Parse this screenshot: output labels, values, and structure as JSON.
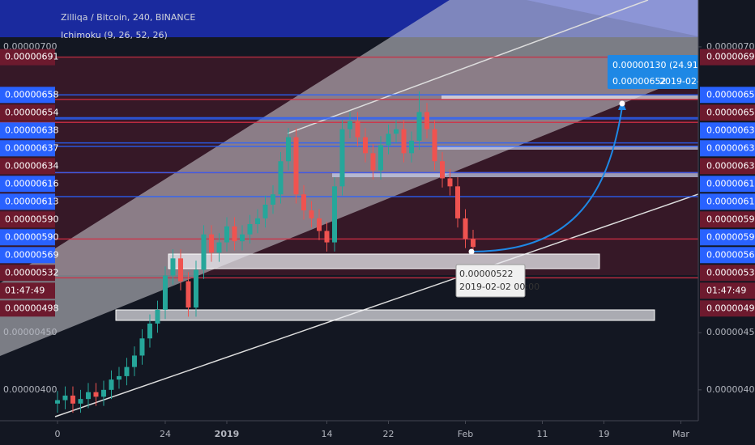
{
  "chart_data": {
    "type": "candlestick",
    "title": "Zilliqa / Bitcoin, 240, BINANCE",
    "subtitle": "Ichimoku (9, 26, 52, 26)",
    "up_color": "#26a69a",
    "down_color": "#ef5350",
    "x": [
      0,
      1,
      2,
      3,
      4,
      5,
      6,
      7,
      8,
      9,
      10,
      11,
      12,
      13,
      14,
      15,
      16,
      17,
      18,
      19,
      20,
      21,
      22,
      23,
      24,
      25,
      26,
      27,
      28,
      29,
      30,
      31,
      32,
      33,
      34,
      35,
      36,
      37,
      38,
      39,
      40,
      41,
      42,
      43,
      44,
      45,
      46,
      47,
      48,
      49,
      50,
      51,
      52,
      53,
      54
    ],
    "open": [
      3.88e-06,
      3.91e-06,
      3.95e-06,
      3.88e-06,
      3.92e-06,
      3.98e-06,
      3.94e-06,
      4e-06,
      4.09e-06,
      4.12e-06,
      4.2e-06,
      4.3e-06,
      4.45e-06,
      4.58e-06,
      4.7e-06,
      5e-06,
      5.15e-06,
      4.95e-06,
      4.72e-06,
      5.05e-06,
      5.36e-06,
      5.2e-06,
      5.29e-06,
      5.43e-06,
      5.3e-06,
      5.36e-06,
      5.45e-06,
      5.5e-06,
      5.62e-06,
      5.71e-06,
      6e-06,
      6.21e-06,
      5.71e-06,
      5.57e-06,
      5.5e-06,
      5.39e-06,
      5.29e-06,
      5.78e-06,
      6.28e-06,
      6.35e-06,
      6.21e-06,
      6.07e-06,
      5.92e-06,
      6.14e-06,
      6.24e-06,
      6.28e-06,
      6.07e-06,
      6.18e-06,
      6.43e-06,
      6.28e-06,
      6e-06,
      5.85e-06,
      5.78e-06,
      5.5e-06,
      5.32e-06
    ],
    "high": [
      3.99e-06,
      4.03e-06,
      4.03e-06,
      4e-06,
      4.06e-06,
      4.06e-06,
      4.08e-06,
      4.17e-06,
      4.2e-06,
      4.28e-06,
      4.38e-06,
      4.53e-06,
      4.66e-06,
      4.78e-06,
      5.08e-06,
      5.23e-06,
      5.23e-06,
      5.03e-06,
      5.13e-06,
      5.44e-06,
      5.44e-06,
      5.37e-06,
      5.51e-06,
      5.51e-06,
      5.44e-06,
      5.53e-06,
      5.58e-06,
      5.7e-06,
      5.79e-06,
      6.08e-06,
      6.29e-06,
      6.29e-06,
      5.79e-06,
      5.65e-06,
      5.58e-06,
      5.47e-06,
      5.86e-06,
      6.36e-06,
      6.43e-06,
      6.43e-06,
      6.29e-06,
      6.15e-06,
      6.22e-06,
      6.32e-06,
      6.36e-06,
      6.36e-06,
      6.26e-06,
      6.61e-06,
      6.51e-06,
      6.36e-06,
      6.08e-06,
      5.93e-06,
      5.86e-06,
      5.58e-06,
      5.4e-06
    ],
    "low": [
      3.8e-06,
      3.83e-06,
      3.8e-06,
      3.8e-06,
      3.84e-06,
      3.86e-06,
      3.86e-06,
      3.92e-06,
      4.01e-06,
      4.04e-06,
      4.12e-06,
      4.22e-06,
      4.37e-06,
      4.5e-06,
      4.62e-06,
      4.92e-06,
      4.87e-06,
      4.64e-06,
      4.64e-06,
      4.97e-06,
      5.12e-06,
      5.12e-06,
      5.21e-06,
      5.22e-06,
      5.22e-06,
      5.28e-06,
      5.37e-06,
      5.42e-06,
      5.54e-06,
      5.63e-06,
      5.92e-06,
      5.63e-06,
      5.49e-06,
      5.42e-06,
      5.31e-06,
      5.21e-06,
      5.21e-06,
      5.7e-06,
      6.2e-06,
      6.13e-06,
      5.99e-06,
      5.84e-06,
      5.84e-06,
      6.06e-06,
      6.16e-06,
      5.99e-06,
      5.99e-06,
      6.1e-06,
      6.2e-06,
      5.92e-06,
      5.77e-06,
      5.7e-06,
      5.42e-06,
      5.24e-06,
      5.22e-06
    ],
    "close": [
      3.91e-06,
      3.95e-06,
      3.88e-06,
      3.92e-06,
      3.98e-06,
      3.94e-06,
      4e-06,
      4.09e-06,
      4.12e-06,
      4.2e-06,
      4.3e-06,
      4.45e-06,
      4.58e-06,
      4.7e-06,
      5e-06,
      5.15e-06,
      4.95e-06,
      4.72e-06,
      5.05e-06,
      5.36e-06,
      5.2e-06,
      5.29e-06,
      5.43e-06,
      5.3e-06,
      5.36e-06,
      5.45e-06,
      5.5e-06,
      5.62e-06,
      5.71e-06,
      6e-06,
      6.21e-06,
      5.71e-06,
      5.57e-06,
      5.5e-06,
      5.39e-06,
      5.29e-06,
      5.78e-06,
      6.28e-06,
      6.35e-06,
      6.21e-06,
      6.07e-06,
      5.92e-06,
      6.14e-06,
      6.24e-06,
      6.28e-06,
      6.07e-06,
      6.18e-06,
      6.43e-06,
      6.28e-06,
      6e-06,
      5.85e-06,
      5.78e-06,
      5.5e-06,
      5.32e-06,
      5.25e-06
    ],
    "xlim": [
      -7.47,
      83.26
    ],
    "xticks": [
      0,
      {
        "value": 14,
        "label": "24"
      },
      {
        "value": 22,
        "label": "2019"
      },
      {
        "value": 35,
        "label": "14"
      },
      {
        "value": 43,
        "label": "22"
      },
      {
        "value": 53,
        "label": "Feb"
      },
      {
        "value": 63,
        "label": "11"
      },
      {
        "value": 71,
        "label": "19"
      },
      {
        "value": 81,
        "label": "Mar"
      }
    ],
    "ylim": [
      3.73e-06,
      7.41e-06
    ],
    "yticks": [
      {
        "value": 7e-06,
        "label": "0.00000700"
      },
      {
        "value": 4.5e-06,
        "label": "0.00000450"
      },
      {
        "value": 4e-06,
        "label": "0.00000400"
      }
    ],
    "levels": [
      {
        "value": 6.91e-06,
        "label": "0.00000691",
        "color": "#d32f45"
      },
      {
        "value": 6.58e-06,
        "label": "0.00000658",
        "color": "#2962ff"
      },
      {
        "value": 6.54e-06,
        "label": "0.00000654",
        "color": "#d32f45"
      },
      {
        "value": 6.38e-06,
        "label": "0.00000638",
        "color": "#2962ff"
      },
      {
        "value": 6.37e-06,
        "label": "0.00000637",
        "color": "#2962ff"
      },
      {
        "value": 6.34e-06,
        "label": "0.00000634",
        "color": "#d32f45"
      },
      {
        "value": 6.16e-06,
        "label": "0.00000616",
        "color": "#2962ff"
      },
      {
        "value": 6.13e-06,
        "label": "0.00000613",
        "color": "#2962ff"
      },
      {
        "value": 5.9e-06,
        "label": "0.00000590",
        "color": "#d32f45"
      },
      {
        "value": 5.9e-06,
        "label": "0.00000590",
        "color": "#2962ff"
      },
      {
        "value": 5.69e-06,
        "label": "0.00000569",
        "color": "#2962ff"
      },
      {
        "value": 5.32e-06,
        "label": "0.00000532",
        "color": "#d32f45"
      },
      {
        "value": 4.98e-06,
        "label": "0.00000498",
        "color": "#d32f45"
      }
    ],
    "countdown": "01:47:49",
    "annotations": {
      "projection_change": "0.00000130 (24.91",
      "projection_price": "0.00000652",
      "projection_date": "2019-02-2",
      "low_price": "0.00000522",
      "low_date": "2019-02-02 00:00"
    }
  }
}
